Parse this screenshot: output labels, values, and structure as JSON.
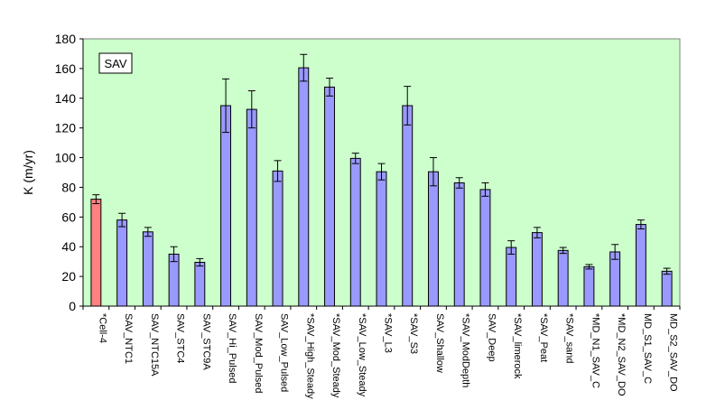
{
  "chart_data": {
    "type": "bar",
    "legend_box_text": "SAV",
    "ylabel": "K (m/yr)",
    "ylim": [
      0,
      180
    ],
    "yticks": [
      0,
      20,
      40,
      60,
      80,
      100,
      120,
      140,
      160,
      180
    ],
    "grid": false,
    "categories": [
      "*Cell-4",
      "SAV_NTC1",
      "SAV_NTC15A",
      "SAV_STC4",
      "SAV_STC9A",
      "SAV_Hi_Pulsed",
      "SAV_Mod_Pulsed",
      "SAV_Low_Pulsed",
      "*SAV_High_Steady",
      "*SAV_Mod_Steady",
      "*SAV_Low_Steady",
      "*SAV_L3",
      "*SAV_S3",
      "SAV_Shallow",
      "*SAV_ModDepth",
      "SAV_Deep",
      "*SAV_limerock",
      "*SAV_Peat",
      "*SAV_sand",
      "*MD_N1_SAV_C",
      "*MD_N2_SAV_DO",
      "MD_S1_SAV_C",
      "MD_S2_SAV_DO"
    ],
    "values": [
      72,
      58,
      50,
      35,
      29.5,
      135,
      132.5,
      91,
      160.5,
      147.5,
      99.5,
      90.5,
      135,
      90.5,
      83,
      78.5,
      39.5,
      49.5,
      37.5,
      26.5,
      36.5,
      55,
      23.5
    ],
    "error": [
      3,
      4.5,
      3,
      5,
      2.5,
      18,
      12.5,
      7,
      9,
      6,
      3.5,
      5.5,
      13,
      9.5,
      3.5,
      4.5,
      4.5,
      3.5,
      2,
      1.5,
      5,
      3,
      2
    ],
    "colors": {
      "plot_background": "#ccffcc",
      "highlight_bar": "#ff8080",
      "bar": "#9999ff",
      "bar_edge": "#000000"
    }
  }
}
